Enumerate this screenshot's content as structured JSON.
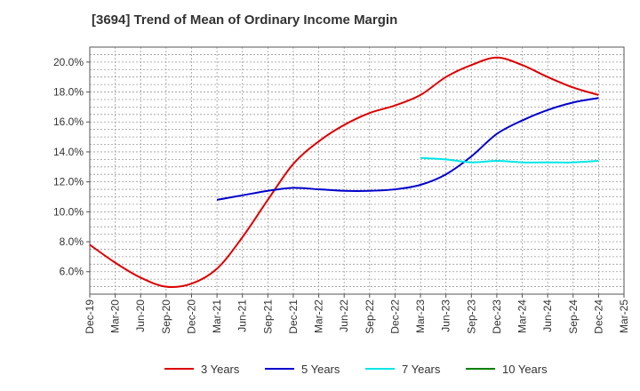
{
  "chart_data": {
    "type": "line",
    "title": "[3694]  Trend of Mean of Ordinary Income Margin",
    "xlabel": "",
    "ylabel": "",
    "x": [
      "Dec-19",
      "Mar-20",
      "Jun-20",
      "Sep-20",
      "Dec-20",
      "Mar-21",
      "Jun-21",
      "Sep-21",
      "Dec-21",
      "Mar-22",
      "Jun-22",
      "Sep-22",
      "Dec-22",
      "Mar-23",
      "Jun-23",
      "Sep-23",
      "Dec-23",
      "Mar-24",
      "Jun-24",
      "Sep-24",
      "Dec-24",
      "Mar-25"
    ],
    "ylim": [
      4.5,
      21.0
    ],
    "yticks": [
      6.0,
      8.0,
      10.0,
      12.0,
      14.0,
      16.0,
      18.0,
      20.0
    ],
    "ytick_labels": [
      "6.0%",
      "8.0%",
      "10.0%",
      "12.0%",
      "14.0%",
      "16.0%",
      "18.0%",
      "20.0%"
    ],
    "grid": true,
    "legend_position": "bottom",
    "series": [
      {
        "name": "3 Years",
        "color": "#dd0000",
        "values": [
          7.8,
          6.6,
          5.6,
          5.0,
          5.2,
          6.2,
          8.3,
          10.8,
          13.2,
          14.7,
          15.8,
          16.6,
          17.1,
          17.8,
          19.0,
          19.8,
          20.3,
          19.8,
          19.0,
          18.3,
          17.8,
          null
        ]
      },
      {
        "name": "5 Years",
        "color": "#0000cc",
        "values": [
          null,
          null,
          null,
          null,
          null,
          10.8,
          11.1,
          11.4,
          11.6,
          11.5,
          11.4,
          11.4,
          11.5,
          11.8,
          12.5,
          13.7,
          15.2,
          16.1,
          16.8,
          17.3,
          17.6,
          null
        ]
      },
      {
        "name": "7 Years",
        "color": "#00e5e5",
        "values": [
          null,
          null,
          null,
          null,
          null,
          null,
          null,
          null,
          null,
          null,
          null,
          null,
          null,
          13.6,
          13.5,
          13.3,
          13.4,
          13.3,
          13.3,
          13.3,
          13.4,
          null
        ]
      },
      {
        "name": "10 Years",
        "color": "#008000",
        "values": [
          null,
          null,
          null,
          null,
          null,
          null,
          null,
          null,
          null,
          null,
          null,
          null,
          null,
          null,
          null,
          null,
          null,
          null,
          null,
          null,
          null,
          null
        ]
      }
    ]
  }
}
